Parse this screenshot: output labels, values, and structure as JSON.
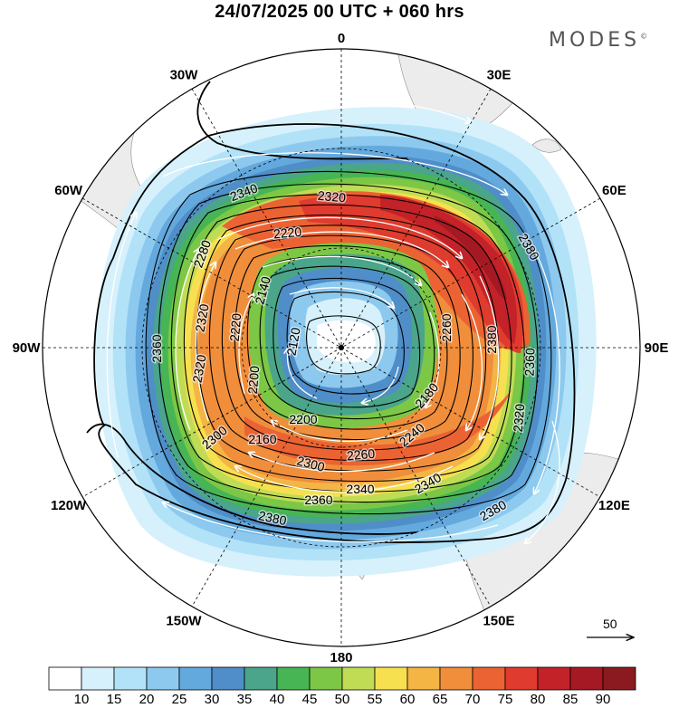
{
  "header": {
    "title": "24/07/2025  00 UTC  + 060 hrs",
    "brand": "MODES",
    "brand_mark": "©"
  },
  "map": {
    "projection": "south-polar-stereographic",
    "longitude_labels": [
      {
        "name": "0",
        "lon": 0
      },
      {
        "name": "30E",
        "lon": 30
      },
      {
        "name": "60E",
        "lon": 60
      },
      {
        "name": "90E",
        "lon": 90
      },
      {
        "name": "120E",
        "lon": 120
      },
      {
        "name": "150E",
        "lon": 150
      },
      {
        "name": "180",
        "lon": 180
      },
      {
        "name": "150W",
        "lon": -150
      },
      {
        "name": "120W",
        "lon": -120
      },
      {
        "name": "90W",
        "lon": -90
      },
      {
        "name": "60W",
        "lon": -60
      },
      {
        "name": "30W",
        "lon": -30
      }
    ],
    "contour_labels": [
      "2340",
      "2320",
      "2380",
      "2220",
      "2280",
      "2140",
      "2320",
      "2220",
      "2360",
      "2120",
      "2200",
      "2320",
      "2360",
      "2260",
      "2160",
      "2180",
      "2380",
      "2200",
      "2320",
      "2300",
      "2240",
      "2300",
      "2260",
      "2340",
      "2340",
      "2360",
      "2380",
      "2380"
    ],
    "vector_reference": {
      "label": "50"
    }
  },
  "colorbar": {
    "ticks": [
      "10",
      "15",
      "20",
      "25",
      "30",
      "35",
      "40",
      "45",
      "50",
      "55",
      "60",
      "65",
      "70",
      "75",
      "80",
      "85",
      "90"
    ],
    "colors": [
      "#ffffff",
      "#d6f1fb",
      "#b2e2f7",
      "#8dc9ee",
      "#64a9dd",
      "#4f8ec8",
      "#4aa58a",
      "#47b553",
      "#7cc746",
      "#c0dc55",
      "#f7e04f",
      "#f4b545",
      "#f08e3c",
      "#eb6332",
      "#df3b2e",
      "#c32228",
      "#a51924",
      "#8a1a1f"
    ]
  }
}
